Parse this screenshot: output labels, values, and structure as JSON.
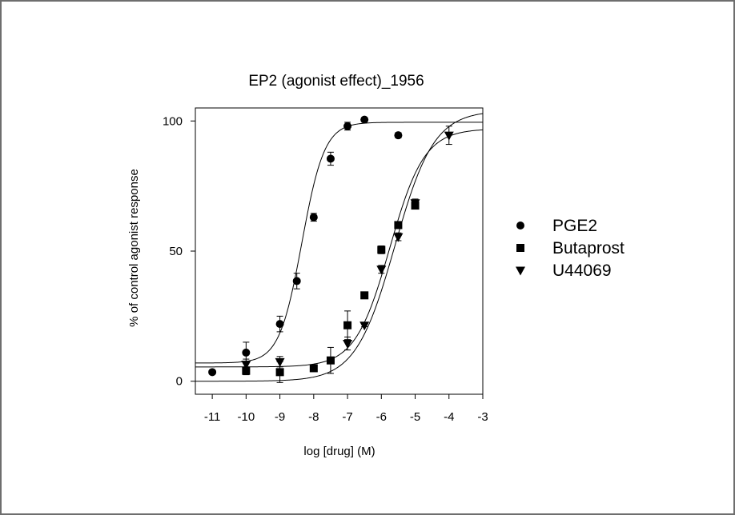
{
  "chart_data": {
    "type": "scatter",
    "title": "EP2 (agonist effect)_1956",
    "xlabel": "log [drug] (M)",
    "ylabel": "% of control agonist response",
    "xlim": [
      -11.5,
      -3
    ],
    "ylim": [
      -5,
      105
    ],
    "xticks": [
      -11,
      -10,
      -9,
      -8,
      -7,
      -6,
      -5,
      -4,
      -3
    ],
    "yticks": [
      0,
      50,
      100
    ],
    "xtick_labels": [
      "-11",
      "-10",
      "-9",
      "-8",
      "-7",
      "-6",
      "-5",
      "-4",
      "-3"
    ],
    "ytick_labels": [
      "0",
      "50",
      "100"
    ],
    "legend_position": "right",
    "grid": false,
    "series": [
      {
        "name": "PGE2",
        "marker": "circle",
        "points": [
          {
            "x": -11,
            "y": 3.5,
            "err": 0
          },
          {
            "x": -10,
            "y": 11,
            "err": 4
          },
          {
            "x": -9,
            "y": 22,
            "err": 3
          },
          {
            "x": -8.5,
            "y": 38.5,
            "err": 3
          },
          {
            "x": -8,
            "y": 63,
            "err": 1.5
          },
          {
            "x": -7.5,
            "y": 85.5,
            "err": 2.5
          },
          {
            "x": -7,
            "y": 98,
            "err": 1.5
          },
          {
            "x": -6.5,
            "y": 100.5,
            "err": 0.5
          },
          {
            "x": -5.5,
            "y": 94.5,
            "err": 1
          }
        ],
        "fit": {
          "bottom": 7,
          "top": 99.5,
          "log_ec50": -8.35,
          "hill": 1.3
        }
      },
      {
        "name": "Butaprost",
        "marker": "square",
        "points": [
          {
            "x": -10,
            "y": 4,
            "err": 1.5
          },
          {
            "x": -9,
            "y": 3.5,
            "err": 4
          },
          {
            "x": -8,
            "y": 5,
            "err": 1
          },
          {
            "x": -7.5,
            "y": 8,
            "err": 5
          },
          {
            "x": -7,
            "y": 21.5,
            "err": 5.5
          },
          {
            "x": -6.5,
            "y": 33,
            "err": 1
          },
          {
            "x": -6,
            "y": 50.5,
            "err": 1.5
          },
          {
            "x": -5.5,
            "y": 60,
            "err": 1
          },
          {
            "x": -5,
            "y": 67.5,
            "err": 1
          }
        ],
        "fit": {
          "bottom": 5.5,
          "top": 97,
          "log_ec50": -5.75,
          "hill": 0.85
        }
      },
      {
        "name": "U44069",
        "marker": "triangle-down",
        "points": [
          {
            "x": -10,
            "y": 6.5,
            "err": 2
          },
          {
            "x": -9,
            "y": 7.5,
            "err": 2
          },
          {
            "x": -7,
            "y": 14.5,
            "err": 2.5
          },
          {
            "x": -6.5,
            "y": 21.5,
            "err": 0.5
          },
          {
            "x": -6,
            "y": 43,
            "err": 1.5
          },
          {
            "x": -5.5,
            "y": 55.5,
            "err": 1.5
          },
          {
            "x": -5,
            "y": 68.5,
            "err": 1.5
          },
          {
            "x": -4,
            "y": 94.5,
            "err": 3.5
          }
        ],
        "fit": {
          "bottom": 0,
          "top": 104,
          "log_ec50": -5.6,
          "hill": 0.75
        }
      }
    ]
  }
}
